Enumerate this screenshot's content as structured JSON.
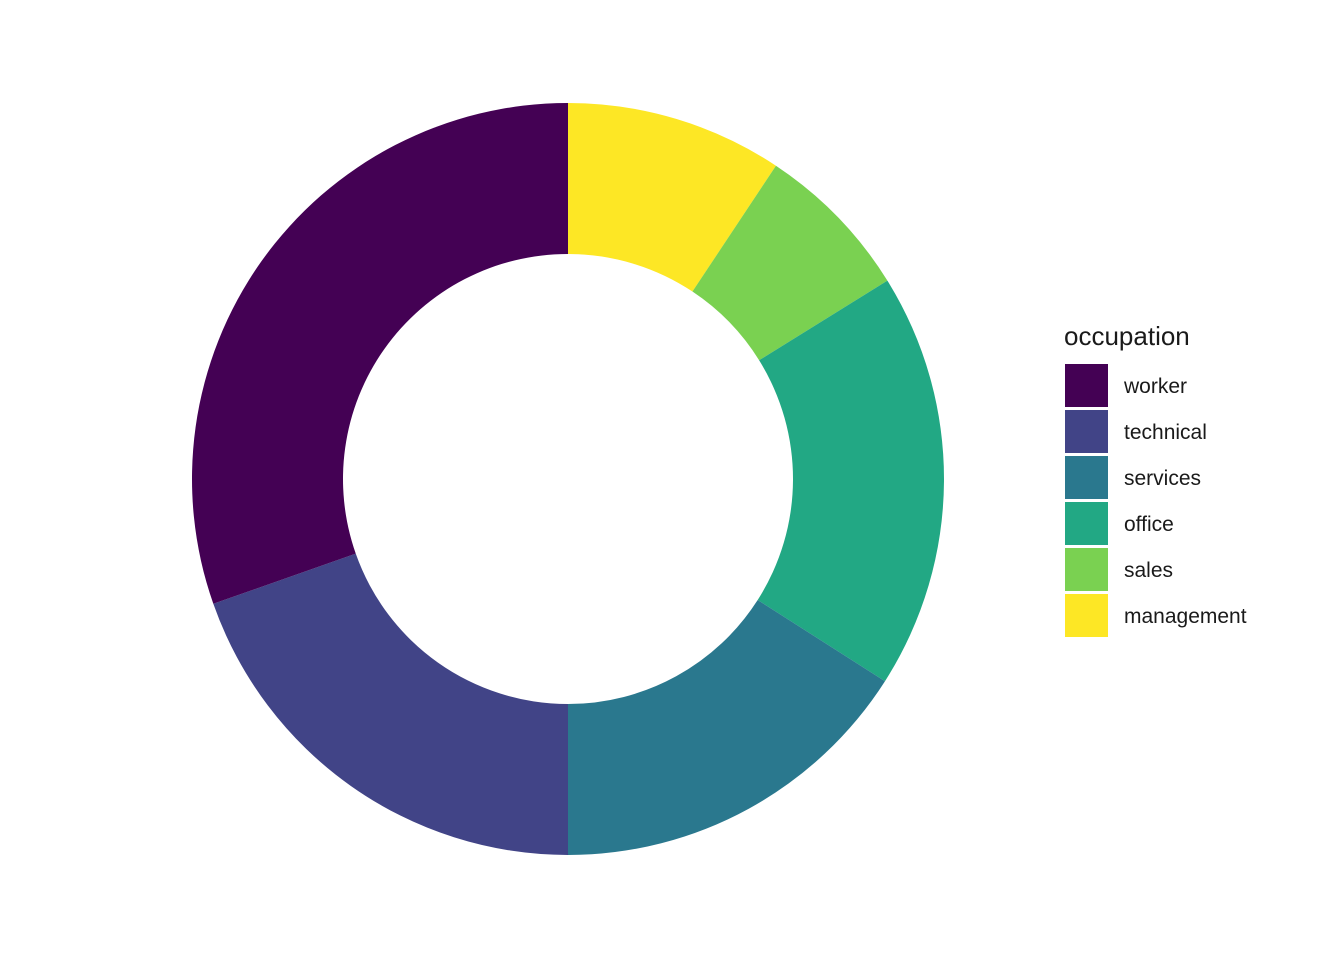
{
  "chart_data": {
    "type": "pie",
    "style": "donut",
    "legend_title": "occupation",
    "legend_position": "right",
    "categories": [
      "worker",
      "technical",
      "services",
      "office",
      "sales",
      "management"
    ],
    "values": [
      31.6,
      20.4,
      16.6,
      18.6,
      7.1,
      9.7
    ],
    "colors": [
      "#440154",
      "#414487",
      "#2A788E",
      "#22A884",
      "#7AD151",
      "#FDE725"
    ]
  }
}
